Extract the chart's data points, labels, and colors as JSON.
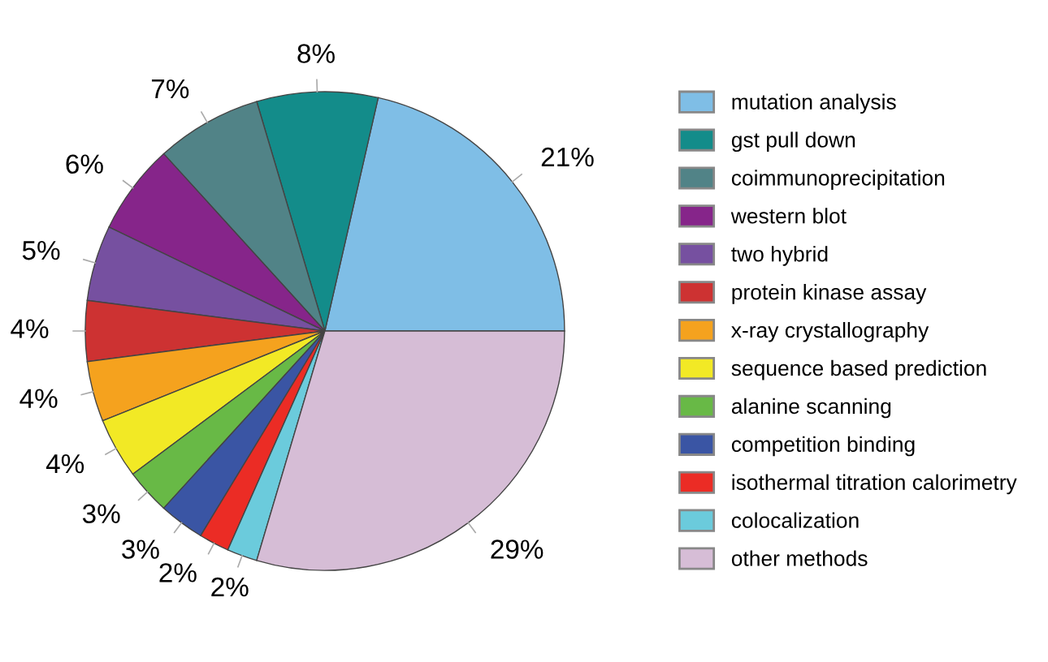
{
  "chart_data": {
    "type": "pie",
    "categories": [
      "mutation analysis",
      "gst pull down",
      "coimmunoprecipitation",
      "western blot",
      "two hybrid",
      "protein kinase assay",
      "x-ray crystallography",
      "sequence based prediction",
      "alanine scanning",
      "competition binding",
      "isothermal titration calorimetry",
      "colocalization",
      "other methods"
    ],
    "values": [
      21,
      8,
      7,
      6,
      5,
      4,
      4,
      4,
      3,
      3,
      2,
      2,
      29
    ],
    "value_labels": [
      "21%",
      "8%",
      "7%",
      "6%",
      "5%",
      "4%",
      "4%",
      "4%",
      "3%",
      "3%",
      "2%",
      "2%",
      "29%"
    ],
    "colors": [
      "#7fbee6",
      "#138c8a",
      "#518387",
      "#86258a",
      "#7650a0",
      "#cd3232",
      "#f5a21e",
      "#f2e925",
      "#68b946",
      "#3a55a4",
      "#eb2c25",
      "#6bcbdc",
      "#d6bdd6"
    ],
    "legend": "right"
  }
}
